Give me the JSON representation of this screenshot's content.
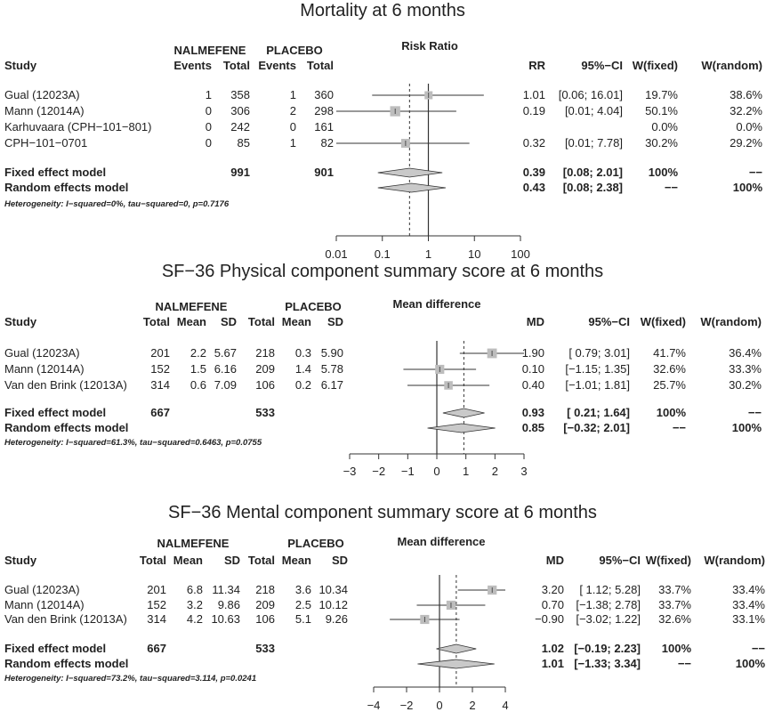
{
  "chart_data": [
    {
      "type": "forest",
      "title": "Mortality at 6 months",
      "xlabel": "Risk Ratio",
      "log_scale": true,
      "xlim": [
        0.01,
        100
      ],
      "null_line": 1,
      "pooled_line": 0.39,
      "ticks": [
        "0.01",
        "0.1",
        "1",
        "10",
        "100"
      ],
      "group_labels": [
        "NALMEFENE",
        "PLACEBO"
      ],
      "columns": [
        "Study",
        "Events",
        "Total",
        "Events",
        "Total",
        "RR",
        "95%−CI",
        "W(fixed)",
        "W(random)"
      ],
      "studies": [
        {
          "study": "Gual (12023A)",
          "cells": [
            "1",
            "358",
            "1",
            "360"
          ],
          "est_text": "1.01",
          "ci_text": "[0.06; 16.01]",
          "wf": "19.7%",
          "wr": "38.6%",
          "est": 1.01,
          "lo": 0.06,
          "hi": 16.01,
          "weight": 0.197
        },
        {
          "study": "Mann (12014A)",
          "cells": [
            "0",
            "306",
            "2",
            "298"
          ],
          "est_text": "0.19",
          "ci_text": "[0.01; 4.04]",
          "wf": "50.1%",
          "wr": "32.2%",
          "est": 0.19,
          "lo": 0.01,
          "hi": 4.04,
          "weight": 0.501
        },
        {
          "study": "Karhuvaara (CPH−101−801)",
          "cells": [
            "0",
            "242",
            "0",
            "161"
          ],
          "est_text": "",
          "ci_text": "",
          "wf": "0.0%",
          "wr": "0.0%"
        },
        {
          "study": "CPH−101−0701",
          "cells": [
            "0",
            "85",
            "1",
            "82"
          ],
          "est_text": "0.32",
          "ci_text": "[0.01; 7.78]",
          "wf": "30.2%",
          "wr": "29.2%",
          "est": 0.32,
          "lo": 0.01,
          "hi": 7.78,
          "weight": 0.302
        }
      ],
      "pooled": [
        {
          "label": "Fixed effect model",
          "cells": [
            "",
            "991",
            "",
            "901"
          ],
          "est_text": "0.39",
          "ci_text": "[0.08; 2.01]",
          "wf": "100%",
          "wr": "−−",
          "est": 0.39,
          "lo": 0.08,
          "hi": 2.01
        },
        {
          "label": "Random effects model",
          "cells": [
            "",
            "",
            "",
            ""
          ],
          "est_text": "0.43",
          "ci_text": "[0.08; 2.38]",
          "wf": "−−",
          "wr": "100%",
          "est": 0.43,
          "lo": 0.08,
          "hi": 2.38
        }
      ],
      "heterogeneity": "Heterogeneity: I−squared=0%, tau−squared=0, p=0.7176"
    },
    {
      "type": "forest",
      "title": "SF−36 Physical component summary score at 6 months",
      "xlabel": "Mean difference",
      "log_scale": false,
      "xlim": [
        -3,
        3
      ],
      "null_line": 0,
      "pooled_line": 0.93,
      "ticks": [
        "−3",
        "−2",
        "−1",
        "0",
        "1",
        "2",
        "3"
      ],
      "group_labels": [
        "NALMEFENE",
        "PLACEBO"
      ],
      "columns": [
        "Study",
        "Total",
        "Mean",
        "SD",
        "Total",
        "Mean",
        "SD",
        "MD",
        "95%−CI",
        "W(fixed)",
        "W(random)"
      ],
      "studies": [
        {
          "study": "Gual (12023A)",
          "cells": [
            "201",
            "2.2",
            "5.67",
            "218",
            "0.3",
            "5.90"
          ],
          "est_text": "1.90",
          "ci_text": "[ 0.79; 3.01]",
          "wf": "41.7%",
          "wr": "36.4%",
          "est": 1.9,
          "lo": 0.79,
          "hi": 3.01,
          "weight": 0.417
        },
        {
          "study": "Mann (12014A)",
          "cells": [
            "152",
            "1.5",
            "6.16",
            "209",
            "1.4",
            "5.78"
          ],
          "est_text": "0.10",
          "ci_text": "[−1.15; 1.35]",
          "wf": "32.6%",
          "wr": "33.3%",
          "est": 0.1,
          "lo": -1.15,
          "hi": 1.35,
          "weight": 0.326
        },
        {
          "study": "Van den Brink (12013A)",
          "cells": [
            "314",
            "0.6",
            "7.09",
            "106",
            "0.2",
            "6.17"
          ],
          "est_text": "0.40",
          "ci_text": "[−1.01; 1.81]",
          "wf": "25.7%",
          "wr": "30.2%",
          "est": 0.4,
          "lo": -1.01,
          "hi": 1.81,
          "weight": 0.257
        }
      ],
      "pooled": [
        {
          "label": "Fixed effect model",
          "cells": [
            "667",
            "",
            "",
            "533",
            "",
            ""
          ],
          "est_text": "0.93",
          "ci_text": "[ 0.21; 1.64]",
          "wf": "100%",
          "wr": "−−",
          "est": 0.93,
          "lo": 0.21,
          "hi": 1.64
        },
        {
          "label": "Random effects model",
          "cells": [
            "",
            "",
            "",
            "",
            "",
            ""
          ],
          "est_text": "0.85",
          "ci_text": "[−0.32; 2.01]",
          "wf": "−−",
          "wr": "100%",
          "est": 0.85,
          "lo": -0.32,
          "hi": 2.01
        }
      ],
      "heterogeneity": "Heterogeneity: I−squared=61.3%, tau−squared=0.6463, p=0.0755"
    },
    {
      "type": "forest",
      "title": "SF−36 Mental component summary score at 6 months",
      "xlabel": "Mean difference",
      "log_scale": false,
      "xlim": [
        -4,
        4
      ],
      "null_line": 0,
      "pooled_line": 1.02,
      "ticks": [
        "−4",
        "−2",
        "0",
        "2",
        "4"
      ],
      "group_labels": [
        "NALMEFENE",
        "PLACEBO"
      ],
      "columns": [
        "Study",
        "Total",
        "Mean",
        "SD",
        "Total",
        "Mean",
        "SD",
        "MD",
        "95%−CI",
        "W(fixed)",
        "W(random)"
      ],
      "studies": [
        {
          "study": "Gual (12023A)",
          "cells": [
            "201",
            "6.8",
            "11.34",
            "218",
            "3.6",
            "10.34"
          ],
          "est_text": "3.20",
          "ci_text": "[ 1.12; 5.28]",
          "wf": "33.7%",
          "wr": "33.4%",
          "est": 3.2,
          "lo": 1.12,
          "hi": 5.28,
          "weight": 0.337
        },
        {
          "study": "Mann (12014A)",
          "cells": [
            "152",
            "3.2",
            "9.86",
            "209",
            "2.5",
            "10.12"
          ],
          "est_text": "0.70",
          "ci_text": "[−1.38; 2.78]",
          "wf": "33.7%",
          "wr": "33.4%",
          "est": 0.7,
          "lo": -1.38,
          "hi": 2.78,
          "weight": 0.337
        },
        {
          "study": "Van den Brink (12013A)",
          "cells": [
            "314",
            "4.2",
            "10.63",
            "106",
            "5.1",
            "9.26"
          ],
          "est_text": "−0.90",
          "ci_text": "[−3.02; 1.22]",
          "wf": "32.6%",
          "wr": "33.1%",
          "est": -0.9,
          "lo": -3.02,
          "hi": 1.22,
          "weight": 0.326
        }
      ],
      "pooled": [
        {
          "label": "Fixed effect model",
          "cells": [
            "667",
            "",
            "",
            "533",
            "",
            ""
          ],
          "est_text": "1.02",
          "ci_text": "[−0.19; 2.23]",
          "wf": "100%",
          "wr": "−−",
          "est": 1.02,
          "lo": -0.19,
          "hi": 2.23
        },
        {
          "label": "Random effects model",
          "cells": [
            "",
            "",
            "",
            "",
            "",
            ""
          ],
          "est_text": "1.01",
          "ci_text": "[−1.33; 3.34]",
          "wf": "−−",
          "wr": "100%",
          "est": 1.01,
          "lo": -1.33,
          "hi": 3.34
        }
      ],
      "heterogeneity": "Heterogeneity: I−squared=73.2%, tau−squared=3.114, p=0.0241"
    }
  ],
  "colors": {
    "text": "#222222",
    "square": "#bdbdbd",
    "diamond": "#c9c9c9",
    "line": "#333333"
  }
}
